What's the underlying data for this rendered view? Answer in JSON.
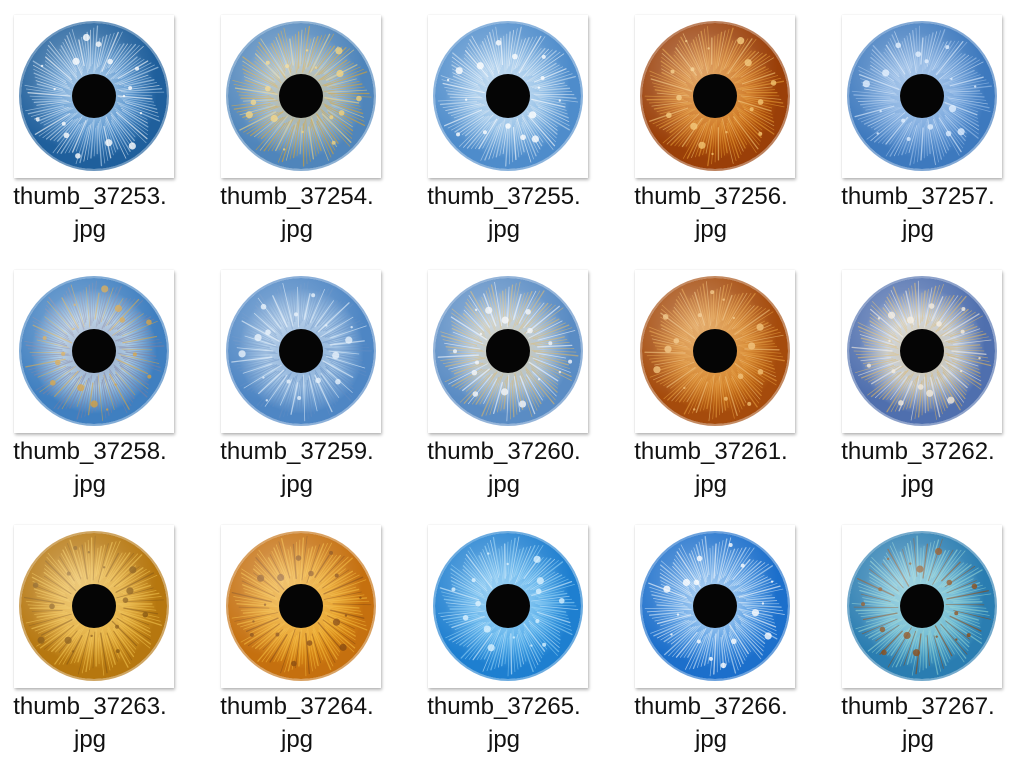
{
  "files": [
    {
      "name_line1": "thumb_37253.",
      "name_line2": "jpg",
      "icon": "blue-iris-thumbnail-icon",
      "colors": {
        "outer": "#1f5f9c",
        "mid": "#4f8fcc",
        "inner": "#b9d5ee",
        "fleck": "#ffffff"
      }
    },
    {
      "name_line1": "thumb_37254.",
      "name_line2": "jpg",
      "icon": "blue-amber-iris-thumbnail-icon",
      "colors": {
        "outer": "#4f85bb",
        "mid": "#8cb4da",
        "inner": "#d9a22e",
        "fleck": "#f1d17a"
      }
    },
    {
      "name_line1": "thumb_37255.",
      "name_line2": "jpg",
      "icon": "blue-iris-thumbnail-icon",
      "colors": {
        "outer": "#4e8ccb",
        "mid": "#8bbbe6",
        "inner": "#c9def0",
        "fleck": "#ffffff"
      }
    },
    {
      "name_line1": "thumb_37256.",
      "name_line2": "jpg",
      "icon": "brown-iris-thumbnail-icon",
      "colors": {
        "outer": "#9a3f08",
        "mid": "#c86913",
        "inner": "#e49a33",
        "fleck": "#f3c46f"
      }
    },
    {
      "name_line1": "thumb_37257.",
      "name_line2": "jpg",
      "icon": "blue-iris-thumbnail-icon",
      "colors": {
        "outer": "#3d79be",
        "mid": "#6fa1da",
        "inner": "#9cc0ea",
        "fleck": "#dfeeff"
      }
    },
    {
      "name_line1": "thumb_37258.",
      "name_line2": "jpg",
      "icon": "blue-gold-iris-thumbnail-icon",
      "colors": {
        "outer": "#3f7fc0",
        "mid": "#a4c8e5",
        "inner": "#7c7fa0",
        "fleck": "#d4a143"
      }
    },
    {
      "name_line1": "thumb_37259.",
      "name_line2": "jpg",
      "icon": "blue-iris-thumbnail-icon",
      "colors": {
        "outer": "#4e86c4",
        "mid": "#9ec1e4",
        "inner": "#5f8cc3",
        "fleck": "#e6f1fb"
      }
    },
    {
      "name_line1": "thumb_37260.",
      "name_line2": "jpg",
      "icon": "blue-gold-iris-thumbnail-icon",
      "colors": {
        "outer": "#5a8cc4",
        "mid": "#a8c3df",
        "inner": "#d6b46b",
        "fleck": "#f4f7fb"
      }
    },
    {
      "name_line1": "thumb_37261.",
      "name_line2": "jpg",
      "icon": "brown-iris-thumbnail-icon",
      "colors": {
        "outer": "#a54b0c",
        "mid": "#d07a1d",
        "inner": "#e49a3b",
        "fleck": "#f0be72"
      }
    },
    {
      "name_line1": "thumb_37262.",
      "name_line2": "jpg",
      "icon": "blue-gold-iris-thumbnail-icon",
      "colors": {
        "outer": "#4f6fae",
        "mid": "#b9c8de",
        "inner": "#d9b262",
        "fleck": "#f3eadb"
      }
    },
    {
      "name_line1": "thumb_37263.",
      "name_line2": "jpg",
      "icon": "amber-iris-thumbnail-icon",
      "colors": {
        "outer": "#b6770f",
        "mid": "#dfa632",
        "inner": "#f0c24c",
        "fleck": "#8a5a12"
      }
    },
    {
      "name_line1": "thumb_37264.",
      "name_line2": "jpg",
      "icon": "amber-iris-thumbnail-icon",
      "colors": {
        "outer": "#c5700f",
        "mid": "#e59b1e",
        "inner": "#f3b93a",
        "fleck": "#8a4d12"
      }
    },
    {
      "name_line1": "thumb_37265.",
      "name_line2": "jpg",
      "icon": "bright-blue-iris-thumbnail-icon",
      "colors": {
        "outer": "#1e7fd0",
        "mid": "#4fa9e8",
        "inner": "#8fd0f6",
        "fleck": "#d6f0ff"
      }
    },
    {
      "name_line1": "thumb_37266.",
      "name_line2": "jpg",
      "icon": "bright-blue-iris-thumbnail-icon",
      "colors": {
        "outer": "#1c6fcb",
        "mid": "#4d97e2",
        "inner": "#c9e2f7",
        "fleck": "#ffffff"
      }
    },
    {
      "name_line1": "thumb_37267.",
      "name_line2": "jpg",
      "icon": "teal-spotted-iris-thumbnail-icon",
      "colors": {
        "outer": "#2a7db1",
        "mid": "#63b4d2",
        "inner": "#8fd1d0",
        "fleck": "#8a4a15"
      }
    }
  ]
}
